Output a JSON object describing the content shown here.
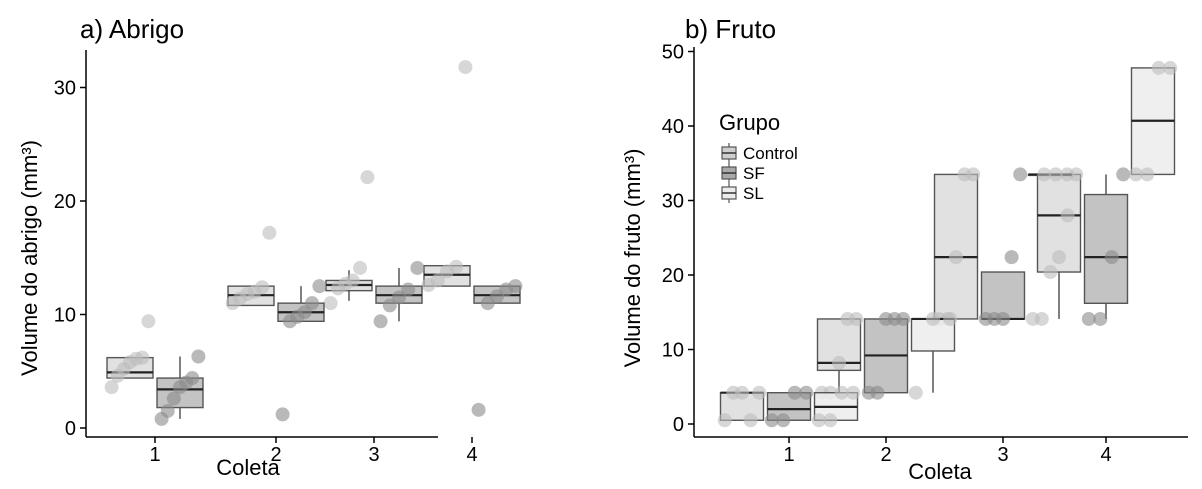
{
  "chart_data": [
    {
      "type": "box",
      "title": "a) Abrigo",
      "xlabel": "Coleta",
      "ylabel": "Volume do abrigo (mm³)",
      "categories": [
        "1",
        "2",
        "3",
        "4"
      ],
      "yticks": [
        0,
        10,
        20,
        30
      ],
      "ylim": [
        -1.2,
        33
      ],
      "grid": false,
      "series": [
        {
          "group": "Control",
          "color": "#dcdcdc",
          "boxes": [
            {
              "q1": 4.4,
              "median": 4.9,
              "q3": 6.2,
              "low": 4.4,
              "high": 6.2,
              "points": [
                3.6,
                4.6,
                5.2,
                5.8,
                6.1,
                6.2,
                9.4
              ]
            },
            {
              "q1": 10.8,
              "median": 11.7,
              "q3": 12.5,
              "low": 10.8,
              "high": 12.5,
              "points": [
                11.0,
                11.4,
                11.8,
                12.0,
                12.4,
                17.2
              ]
            },
            {
              "q1": 12.1,
              "median": 12.6,
              "q3": 13.0,
              "low": 11.2,
              "high": 13.9,
              "points": [
                11.0,
                12.3,
                12.7,
                13.0,
                14.1,
                22.1
              ]
            },
            {
              "q1": 12.5,
              "median": 13.5,
              "q3": 14.3,
              "low": 12.5,
              "high": 14.3,
              "points": [
                12.6,
                13.0,
                13.8,
                14.2,
                31.8
              ]
            }
          ]
        },
        {
          "group": "SF",
          "color": "#b8b8b8",
          "boxes": [
            {
              "q1": 1.8,
              "median": 3.4,
              "q3": 4.4,
              "low": 0.8,
              "high": 6.3,
              "points": [
                0.8,
                1.5,
                2.6,
                3.6,
                4.0,
                4.4,
                6.3
              ]
            },
            {
              "q1": 9.4,
              "median": 10.2,
              "q3": 11.0,
              "low": 9.4,
              "high": 12.5,
              "points": [
                1.2,
                9.4,
                9.8,
                10.2,
                11.0,
                12.5
              ]
            },
            {
              "q1": 11.0,
              "median": 11.7,
              "q3": 12.5,
              "low": 9.4,
              "high": 14.1,
              "points": [
                9.4,
                10.8,
                11.5,
                12.2,
                14.1
              ]
            },
            {
              "q1": 11.0,
              "median": 11.7,
              "q3": 12.5,
              "low": 11.0,
              "high": 12.5,
              "points": [
                1.6,
                11.0,
                11.6,
                12.2,
                12.5
              ]
            }
          ]
        }
      ]
    },
    {
      "type": "box",
      "title": "b) Fruto",
      "xlabel": "Coleta",
      "ylabel": "Volume do fruto (mm³)",
      "categories": [
        "1",
        "2",
        "3",
        "4"
      ],
      "yticks": [
        0,
        10,
        20,
        30,
        40,
        50
      ],
      "ylim": [
        -1.5,
        50
      ],
      "grid": false,
      "legend": {
        "title": "Grupo",
        "position": "top-left",
        "items": [
          {
            "label": "Control",
            "color": "#cfcfcf"
          },
          {
            "label": "SF",
            "color": "#a9a9a9"
          },
          {
            "label": "SL",
            "color": "#ececec"
          }
        ]
      },
      "series": [
        {
          "group": "Control",
          "color": "#dcdcdc",
          "boxes": [
            {
              "q1": 0.5,
              "median": 4.2,
              "q3": 4.2,
              "low": 0.5,
              "high": 4.2,
              "points": [
                0.5,
                4.2,
                4.2,
                0.5,
                4.2
              ]
            },
            {
              "q1": 7.2,
              "median": 8.2,
              "q3": 14.1,
              "low": 4.2,
              "high": 14.1,
              "points": [
                4.2,
                4.2,
                8.2,
                14.1,
                14.1
              ]
            },
            {
              "q1": 14.1,
              "median": 22.4,
              "q3": 33.5,
              "low": 14.1,
              "high": 33.5,
              "points": [
                14.1,
                14.1,
                22.4,
                33.5,
                33.5
              ]
            },
            {
              "q1": 20.4,
              "median": 28.0,
              "q3": 33.5,
              "low": 14.1,
              "high": 33.5,
              "points": [
                14.1,
                20.4,
                22.4,
                28.0,
                33.5
              ]
            }
          ]
        },
        {
          "group": "SF",
          "color": "#b8b8b8",
          "boxes": [
            {
              "q1": 0.5,
              "median": 2.0,
              "q3": 4.2,
              "low": 0.5,
              "high": 4.2,
              "points": [
                0.5,
                0.5,
                4.2,
                4.2
              ]
            },
            {
              "q1": 4.2,
              "median": 9.2,
              "q3": 14.1,
              "low": 4.2,
              "high": 14.1,
              "points": [
                4.2,
                4.2,
                14.1,
                14.1,
                14.1
              ]
            },
            {
              "q1": 14.1,
              "median": 14.1,
              "q3": 20.4,
              "low": 14.1,
              "high": 20.4,
              "points": [
                14.1,
                14.1,
                14.1,
                22.4,
                33.5
              ]
            },
            {
              "q1": 16.2,
              "median": 22.4,
              "q3": 30.8,
              "low": 14.1,
              "high": 33.5,
              "points": [
                14.1,
                14.1,
                22.4,
                33.5
              ]
            }
          ]
        },
        {
          "group": "SL",
          "color": "#ececec",
          "boxes": [
            {
              "q1": 0.5,
              "median": 2.3,
              "q3": 4.2,
              "low": 0.5,
              "high": 4.2,
              "points": [
                0.5,
                0.5,
                4.2,
                4.2
              ]
            },
            {
              "q1": 9.8,
              "median": 14.1,
              "q3": 14.1,
              "low": 4.2,
              "high": 14.1,
              "points": [
                4.2,
                14.1,
                14.1
              ]
            },
            {
              "q1": 33.5,
              "median": 33.5,
              "q3": 33.5,
              "low": 33.5,
              "high": 33.5,
              "points": [
                14.1,
                33.5,
                33.5,
                33.5
              ]
            },
            {
              "q1": 33.5,
              "median": 40.7,
              "q3": 47.8,
              "low": 33.5,
              "high": 47.8,
              "points": [
                33.5,
                33.5,
                47.8,
                47.8
              ]
            }
          ]
        }
      ]
    }
  ]
}
